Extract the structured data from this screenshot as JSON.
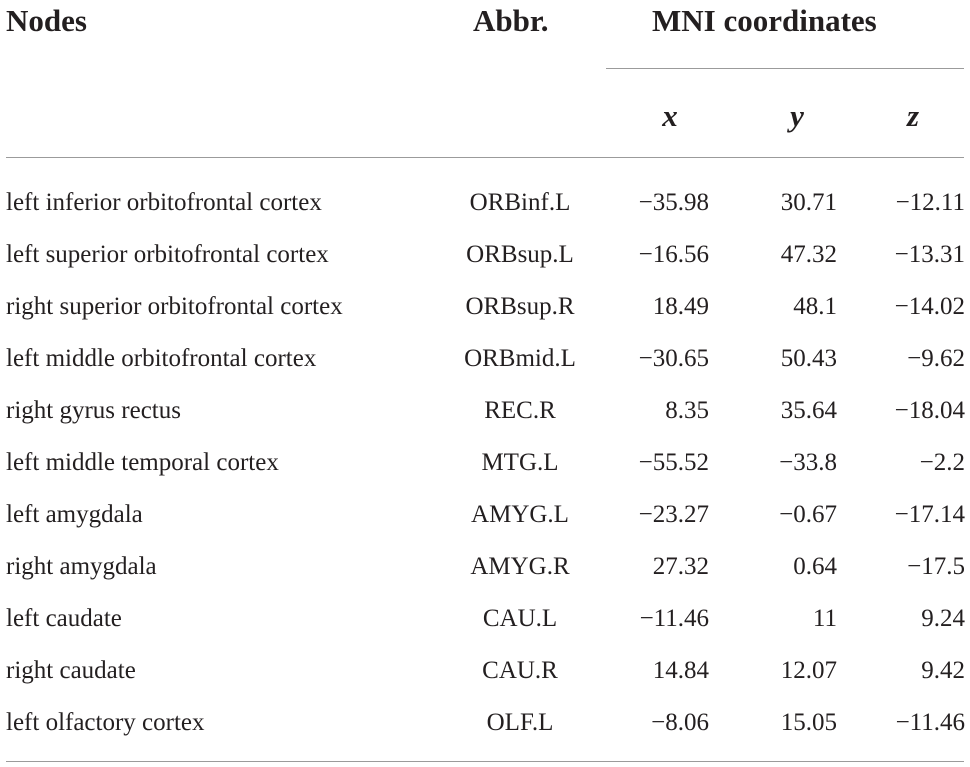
{
  "header": {
    "nodes": "Nodes",
    "abbr": "Abbr.",
    "mni": "MNI coordinates",
    "x": "x",
    "y": "y",
    "z": "z"
  },
  "rows": [
    {
      "node": "left inferior orbitofrontal cortex",
      "abbr": "ORBinf.L",
      "x": "−35.98",
      "y": "30.71",
      "z": "−12.11"
    },
    {
      "node": "left superior orbitofrontal cortex",
      "abbr": "ORBsup.L",
      "x": "−16.56",
      "y": "47.32",
      "z": "−13.31"
    },
    {
      "node": "right superior orbitofrontal cortex",
      "abbr": "ORBsup.R",
      "x": "18.49",
      "y": "48.1",
      "z": "−14.02"
    },
    {
      "node": "left middle orbitofrontal cortex",
      "abbr": "ORBmid.L",
      "x": "−30.65",
      "y": "50.43",
      "z": "−9.62"
    },
    {
      "node": "right gyrus rectus",
      "abbr": "REC.R",
      "x": "8.35",
      "y": "35.64",
      "z": "−18.04"
    },
    {
      "node": "left middle temporal cortex",
      "abbr": "MTG.L",
      "x": "−55.52",
      "y": "−33.8",
      "z": "−2.2"
    },
    {
      "node": "left amygdala",
      "abbr": "AMYG.L",
      "x": "−23.27",
      "y": "−0.67",
      "z": "−17.14"
    },
    {
      "node": "right amygdala",
      "abbr": "AMYG.R",
      "x": "27.32",
      "y": "0.64",
      "z": "−17.5"
    },
    {
      "node": "left caudate",
      "abbr": "CAU.L",
      "x": "−11.46",
      "y": "11",
      "z": "9.24"
    },
    {
      "node": "right caudate",
      "abbr": "CAU.R",
      "x": "14.84",
      "y": "12.07",
      "z": "9.42"
    },
    {
      "node": "left olfactory cortex",
      "abbr": "OLF.L",
      "x": "−8.06",
      "y": "15.05",
      "z": "−11.46"
    }
  ]
}
